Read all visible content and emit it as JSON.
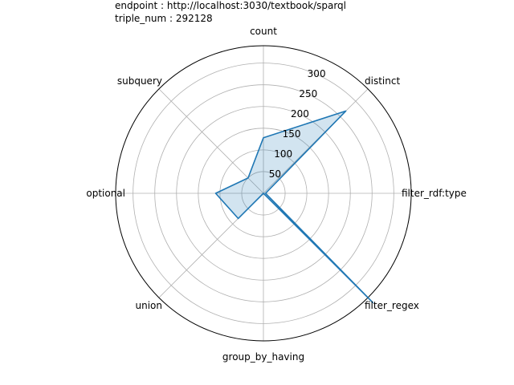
{
  "chart_data": {
    "type": "radar",
    "title_lines": [
      "endpoint : http://localhost:3030/textbook/sparql",
      "triple_num : 292128"
    ],
    "categories": [
      "count",
      "distinct",
      "filter_rdf:type",
      "filter_regex",
      "group_by_having",
      "union",
      "optional",
      "subquery"
    ],
    "series": [
      {
        "values": [
          128,
          268,
          5,
          356,
          0,
          82,
          110,
          50
        ]
      }
    ],
    "rlim": [
      0,
      340
    ],
    "rticks": [
      50,
      100,
      150,
      200,
      250,
      300
    ],
    "grid": true,
    "line_color": "#1f77b4",
    "fill_color": "#1f77b4"
  }
}
